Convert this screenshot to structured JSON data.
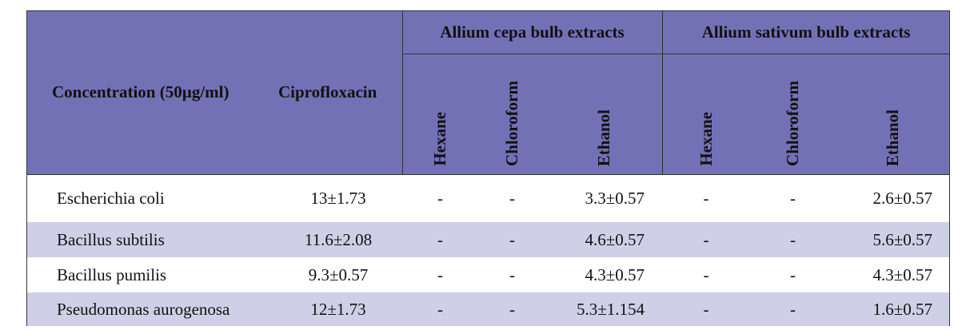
{
  "header": {
    "row_label": "Concentration (50µg/ml)",
    "control": "Ciprofloxacin",
    "groups": [
      {
        "title": "Allium cepa bulb extracts",
        "columns": [
          "Hexane",
          "Chloroform",
          "Ethanol"
        ]
      },
      {
        "title": "Allium sativum bulb extracts",
        "columns": [
          "Hexane",
          "Chloroform",
          "Ethanol"
        ]
      }
    ]
  },
  "table": {
    "rows": [
      [
        "Escherichia coli",
        "13±1.73",
        "-",
        "-",
        "3.3±0.57",
        "-",
        "-",
        "2.6±0.57"
      ],
      [
        "Bacillus subtilis",
        "11.6±2.08",
        "-",
        "-",
        "4.6±0.57",
        "-",
        "-",
        "5.6±0.57"
      ],
      [
        "Bacillus pumilis",
        "9.3±0.57",
        "-",
        "-",
        "4.3±0.57",
        "-",
        "-",
        "4.3±0.57"
      ],
      [
        "Pseudomonas aurogenosa",
        "12±1.73",
        "-",
        "-",
        "5.3±1.154",
        "-",
        "-",
        "1.6±0.57"
      ]
    ]
  }
}
